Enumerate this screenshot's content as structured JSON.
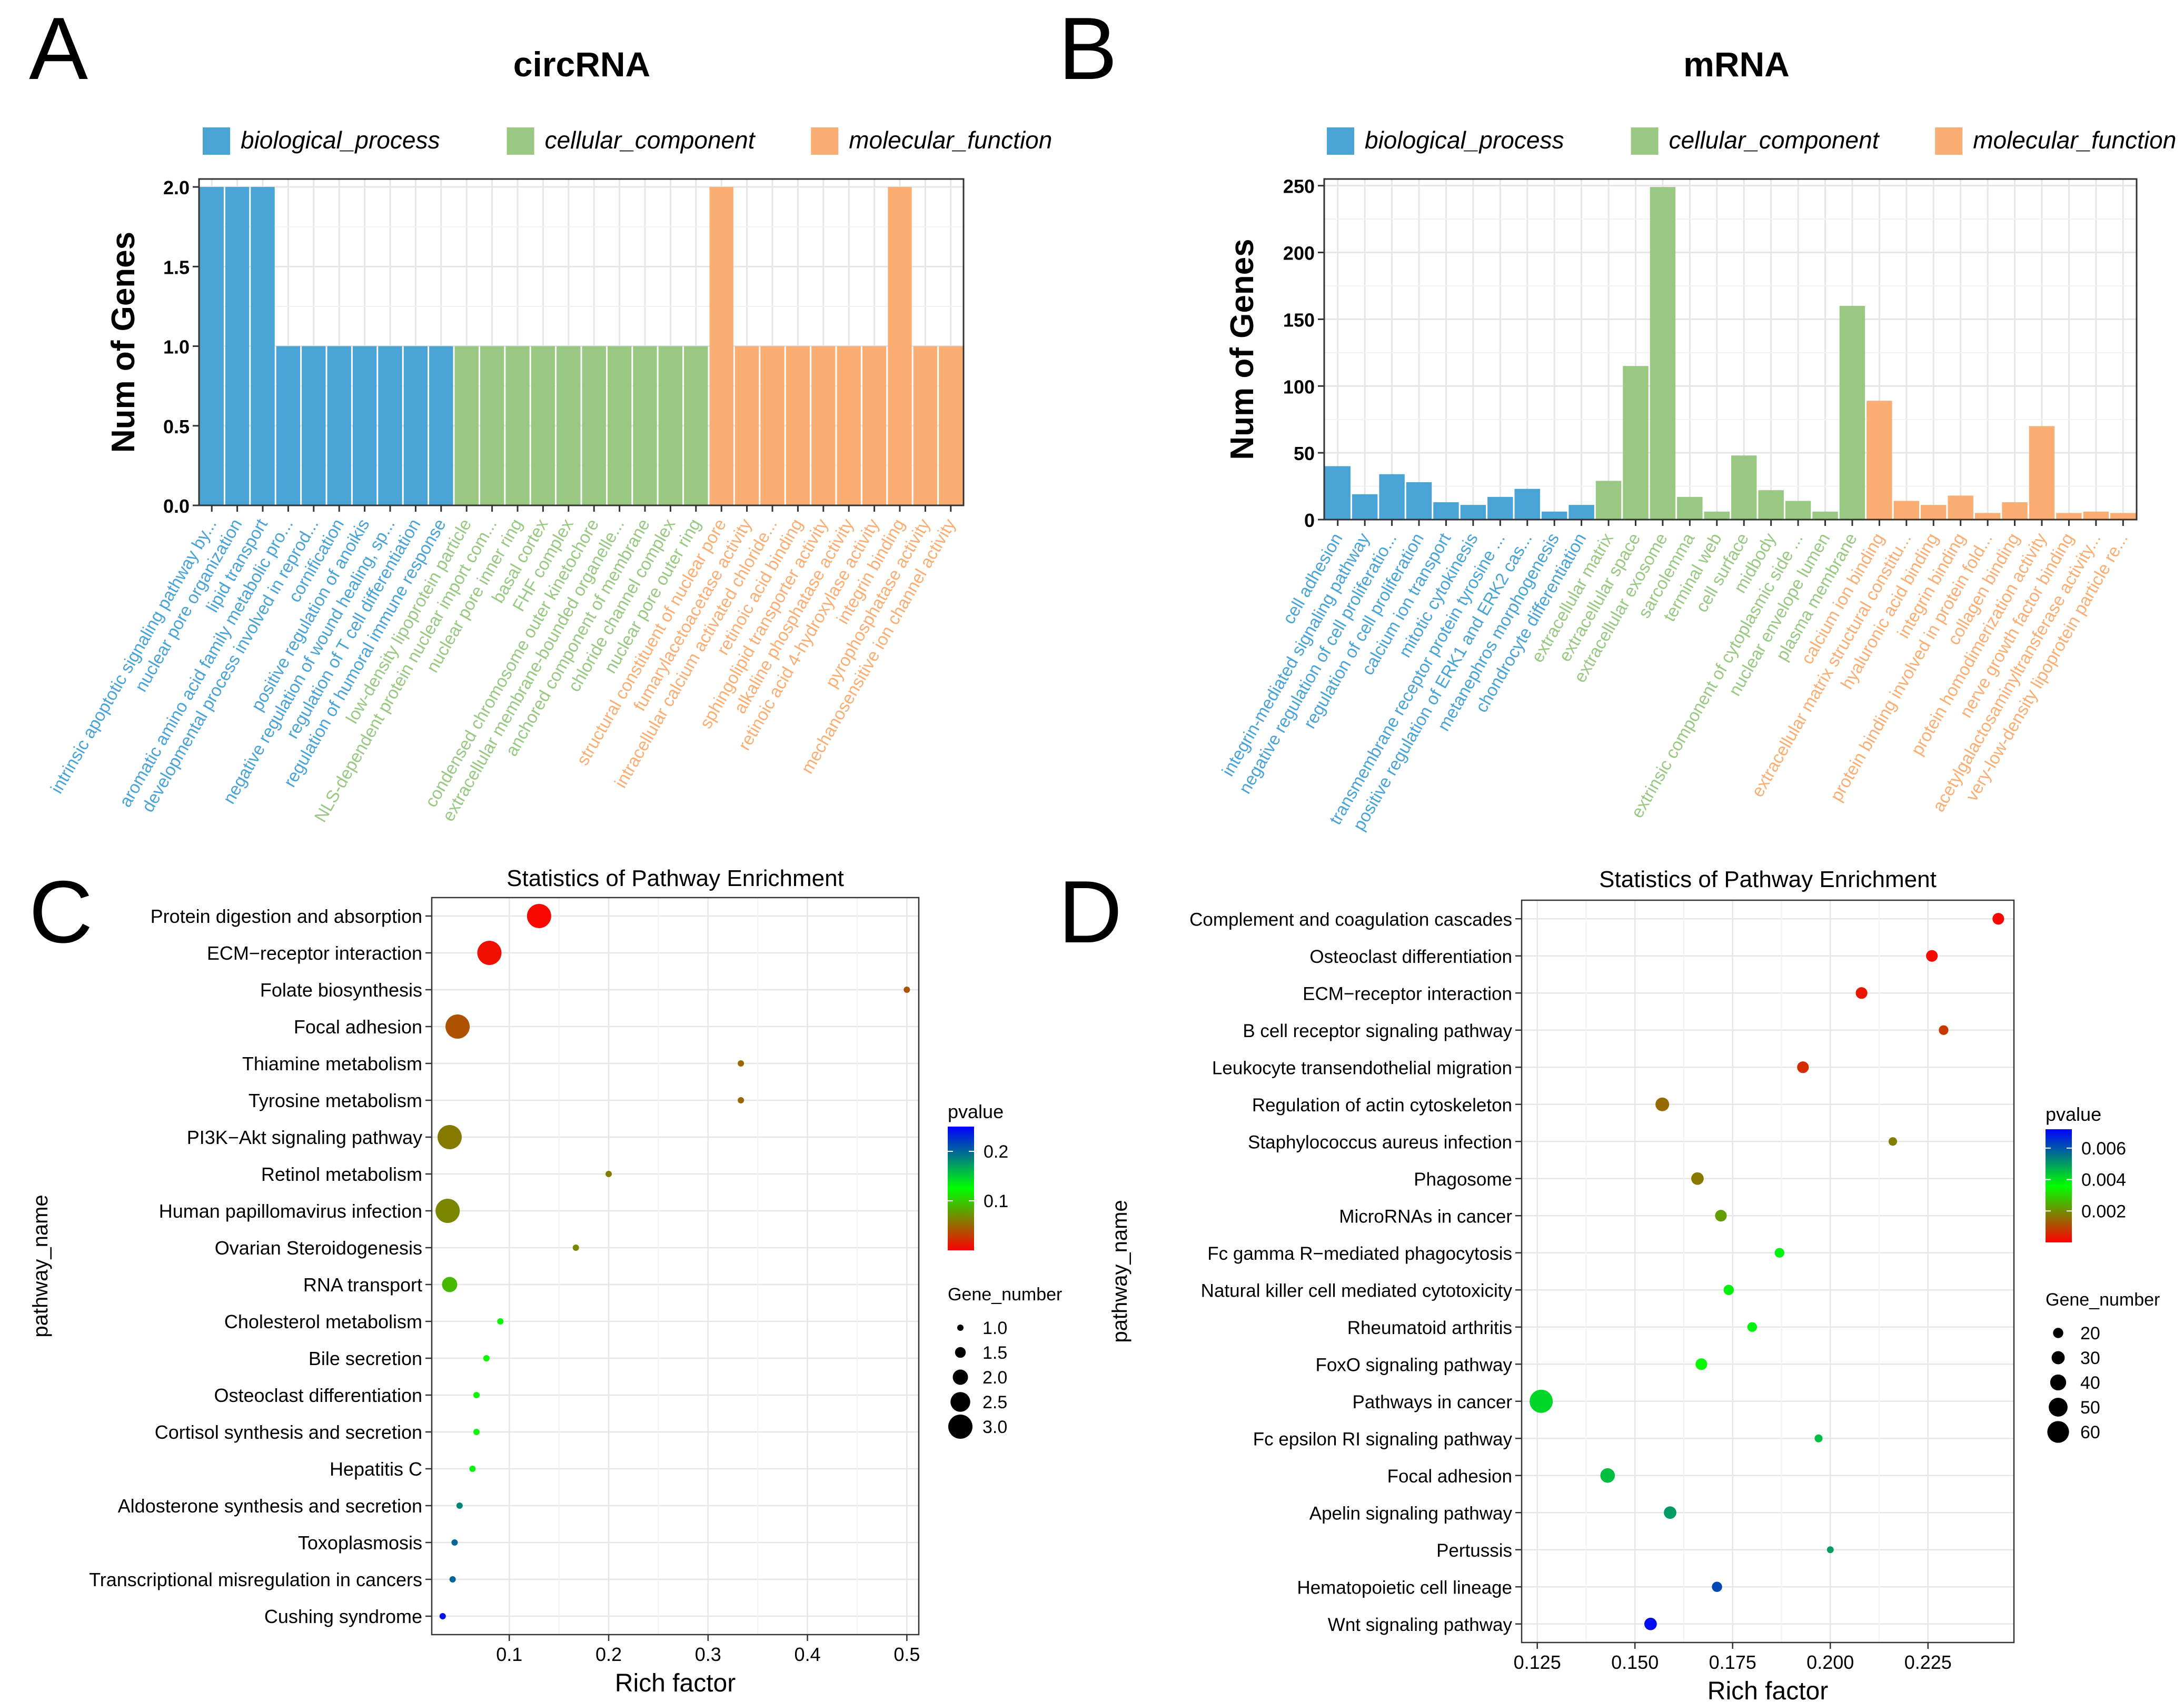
{
  "colors": {
    "biological_process": "#4aa3d5",
    "cellular_component": "#98c882",
    "molecular_function": "#fbae74",
    "pvalue_low": "#ff0000",
    "pvalue_mid": "#00ff00",
    "pvalue_high": "#0000ff",
    "grid_minor": "#f2f2f2",
    "grid_major": "#e6e6e6",
    "axis": "#333333",
    "text": "#000000"
  },
  "chart_data": [
    {
      "panel": "A",
      "type": "bar",
      "title": "circRNA",
      "ylabel": "Num of Genes",
      "xlabel": "",
      "ylim": [
        0,
        2.05
      ],
      "yticks": [
        "0.0",
        "0.5",
        "1.0",
        "1.5",
        "2.0"
      ],
      "grid": true,
      "legend_position": "top",
      "legend": [
        {
          "key": "biological_process",
          "label": "biological_process"
        },
        {
          "key": "cellular_component",
          "label": "cellular_component"
        },
        {
          "key": "molecular_function",
          "label": "molecular_function"
        }
      ],
      "categories": [
        "intrinsic apoptotic signaling pathway by...",
        "nuclear pore organization",
        "lipid transport",
        "aromatic amino acid family metabolic pro...",
        "developmental process involved in reprod...",
        "cornification",
        "positive regulation of anoikis",
        "negative regulation of wound healing, sp...",
        "regulation of T cell differentiation",
        "regulation of humoral immune response",
        "low-density lipoprotein particle",
        "NLS-dependent protein nuclear import com...",
        "nuclear pore inner ring",
        "basal cortex",
        "FHF complex",
        "condensed chromosome outer kinetochore",
        "extracellular membrane-bounded organelle...",
        "anchored component of membrane",
        "chloride channel complex",
        "nuclear pore outer ring",
        "structural constituent of nuclear pore",
        "fumarylacetoacetase activity",
        "intracellular calcium activated chloride...",
        "retinoic acid binding",
        "sphingolipid transporter activity",
        "alkaline phosphatase activity",
        "retinoic acid 4-hydroxylase activity",
        "integrin binding",
        "pyrophosphatase activity",
        "mechanosensitive ion channel activity"
      ],
      "values": [
        2,
        2,
        2,
        1,
        1,
        1,
        1,
        1,
        1,
        1,
        1,
        1,
        1,
        1,
        1,
        1,
        1,
        1,
        1,
        1,
        2,
        1,
        1,
        1,
        1,
        1,
        1,
        2,
        1,
        1
      ],
      "groups": [
        "biological_process",
        "biological_process",
        "biological_process",
        "biological_process",
        "biological_process",
        "biological_process",
        "biological_process",
        "biological_process",
        "biological_process",
        "biological_process",
        "cellular_component",
        "cellular_component",
        "cellular_component",
        "cellular_component",
        "cellular_component",
        "cellular_component",
        "cellular_component",
        "cellular_component",
        "cellular_component",
        "cellular_component",
        "molecular_function",
        "molecular_function",
        "molecular_function",
        "molecular_function",
        "molecular_function",
        "molecular_function",
        "molecular_function",
        "molecular_function",
        "molecular_function",
        "molecular_function"
      ]
    },
    {
      "panel": "B",
      "type": "bar",
      "title": "mRNA",
      "ylabel": "Num of Genes",
      "xlabel": "",
      "ylim": [
        0,
        255
      ],
      "yticks": [
        "0",
        "50",
        "100",
        "150",
        "200",
        "250"
      ],
      "grid": true,
      "legend_position": "top",
      "legend": [
        {
          "key": "biological_process",
          "label": "biological_process"
        },
        {
          "key": "cellular_component",
          "label": "cellular_component"
        },
        {
          "key": "molecular_function",
          "label": "molecular_function"
        }
      ],
      "categories": [
        "cell adhesion",
        "integrin-mediated signaling pathway",
        "negative regulation of cell proliferatio...",
        "regulation of cell proliferation",
        "calcium ion transport",
        "mitotic cytokinesis",
        "transmembrane receptor protein tyrosine ...",
        "positive regulation of ERK1 and ERK2 cas...",
        "metanephros morphogenesis",
        "chondrocyte differentiation",
        "extracellular matrix",
        "extracellular space",
        "extracellular exosome",
        "sarcolemma",
        "terminal web",
        "cell surface",
        "midbody",
        "extrinsic component of cytoplasmic side ...",
        "nuclear envelope lumen",
        "plasma membrane",
        "calcium ion binding",
        "extracellular matrix structural constitu...",
        "hyaluronic acid binding",
        "integrin binding",
        "protein binding involved in protein fold...",
        "collagen binding",
        "protein homodimerization activity",
        "nerve growth factor binding",
        "acetylgalactosaminyltransferase activity...",
        "very-low-density lipoprotein particle re..."
      ],
      "values": [
        40,
        19,
        34,
        28,
        13,
        11,
        17,
        23,
        6,
        11,
        29,
        115,
        249,
        17,
        6,
        48,
        22,
        14,
        6,
        160,
        89,
        14,
        11,
        18,
        5,
        13,
        70,
        5,
        6,
        5
      ],
      "groups": [
        "biological_process",
        "biological_process",
        "biological_process",
        "biological_process",
        "biological_process",
        "biological_process",
        "biological_process",
        "biological_process",
        "biological_process",
        "biological_process",
        "cellular_component",
        "cellular_component",
        "cellular_component",
        "cellular_component",
        "cellular_component",
        "cellular_component",
        "cellular_component",
        "cellular_component",
        "cellular_component",
        "cellular_component",
        "molecular_function",
        "molecular_function",
        "molecular_function",
        "molecular_function",
        "molecular_function",
        "molecular_function",
        "molecular_function",
        "molecular_function",
        "molecular_function",
        "molecular_function"
      ]
    },
    {
      "panel": "C",
      "type": "scatter",
      "title": "Statistics of Pathway Enrichment",
      "xlabel": "Rich factor",
      "ylabel": "pathway_name",
      "xlim": [
        0.022,
        0.512
      ],
      "xticks": [
        0.1,
        0.2,
        0.3,
        0.4,
        0.5
      ],
      "xtick_labels": [
        "0.1",
        "0.2",
        "0.3",
        "0.4",
        "0.5"
      ],
      "grid": true,
      "pvalue_range": [
        0,
        0.25
      ],
      "pvalue_ticks": [
        0.1,
        0.2
      ],
      "pvalue_tick_labels": [
        "0.1",
        "0.2"
      ],
      "size_range": [
        1,
        3
      ],
      "legend_position": "right",
      "color_legend_title": "pvalue",
      "size_legend_title": "Gene_number",
      "size_legend_values": [
        1.0,
        1.5,
        2.0,
        2.5,
        3.0
      ],
      "size_legend_labels": [
        "1.0",
        "1.5",
        "2.0",
        "2.5",
        "3.0"
      ],
      "pathways": [
        "Protein digestion and absorption",
        "ECM−receptor interaction",
        "Folate biosynthesis",
        "Focal adhesion",
        "Thiamine metabolism",
        "Tyrosine metabolism",
        "PI3K−Akt signaling pathway",
        "Retinol metabolism",
        "Human papillomavirus infection",
        "Ovarian Steroidogenesis",
        "RNA transport",
        "Cholesterol metabolism",
        "Bile secretion",
        "Osteoclast differentiation",
        "Cortisol synthesis and secretion",
        "Hepatitis C",
        "Aldosterone synthesis and secretion",
        "Toxoplasmosis",
        "Transcriptional misregulation in cancers",
        "Cushing syndrome"
      ],
      "rich_factor": [
        0.13,
        0.08,
        0.5,
        0.048,
        0.333,
        0.333,
        0.04,
        0.2,
        0.038,
        0.167,
        0.04,
        0.091,
        0.077,
        0.067,
        0.067,
        0.063,
        0.05,
        0.045,
        0.043,
        0.033
      ],
      "gene_number": [
        3,
        3,
        1,
        3,
        1,
        1,
        3,
        1,
        3,
        1,
        2,
        1,
        1,
        1,
        1,
        1,
        1,
        1,
        1,
        1
      ],
      "pvalue": [
        0.004,
        0.008,
        0.04,
        0.04,
        0.05,
        0.05,
        0.06,
        0.06,
        0.065,
        0.065,
        0.09,
        0.12,
        0.12,
        0.12,
        0.12,
        0.13,
        0.185,
        0.2,
        0.2,
        0.24
      ]
    },
    {
      "panel": "D",
      "type": "scatter",
      "title": "Statistics of Pathway Enrichment",
      "xlabel": "Rich factor",
      "ylabel": "pathway_name",
      "xlim": [
        0.121,
        0.247
      ],
      "xticks": [
        0.125,
        0.15,
        0.175,
        0.2,
        0.225
      ],
      "xtick_labels": [
        "0.125",
        "0.150",
        "0.175",
        "0.200",
        "0.225"
      ],
      "grid": true,
      "pvalue_range": [
        0,
        0.0072
      ],
      "pvalue_ticks": [
        0.002,
        0.004,
        0.006
      ],
      "pvalue_tick_labels": [
        "0.002",
        "0.004",
        "0.006"
      ],
      "size_range": [
        10,
        65
      ],
      "legend_position": "right",
      "color_legend_title": "pvalue",
      "size_legend_title": "Gene_number",
      "size_legend_values": [
        20,
        30,
        40,
        50,
        60
      ],
      "size_legend_labels": [
        "20",
        "30",
        "40",
        "50",
        "60"
      ],
      "pathways": [
        "Complement and coagulation cascades",
        "Osteoclast differentiation",
        "ECM−receptor interaction",
        "B cell receptor signaling pathway",
        "Leukocyte transendothelial migration",
        "Regulation of actin cytoskeleton",
        "Staphylococcus aureus infection",
        "Phagosome",
        "MicroRNAs in cancer",
        "Fc gamma R−mediated phagocytosis",
        "Natural killer cell mediated cytotoxicity",
        "Rheumatoid arthritis",
        "FoxO signaling pathway",
        "Pathways in cancer",
        "Fc epsilon RI signaling pathway",
        "Focal adhesion",
        "Apelin signaling pathway",
        "Pertussis",
        "Hematopoietic cell lineage",
        "Wnt signaling pathway"
      ],
      "rich_factor": [
        0.243,
        0.226,
        0.208,
        0.229,
        0.193,
        0.157,
        0.216,
        0.166,
        0.172,
        0.187,
        0.174,
        0.18,
        0.167,
        0.126,
        0.197,
        0.143,
        0.159,
        0.2,
        0.171,
        0.154
      ],
      "gene_number": [
        25,
        25,
        25,
        18,
        25,
        32,
        14,
        28,
        25,
        18,
        20,
        18,
        25,
        65,
        12,
        35,
        28,
        8,
        20,
        28
      ],
      "pvalue": [
        0.0001,
        0.0002,
        0.0003,
        0.0008,
        0.0006,
        0.0015,
        0.0018,
        0.0017,
        0.0022,
        0.0038,
        0.0038,
        0.0038,
        0.0035,
        0.0042,
        0.0045,
        0.0045,
        0.005,
        0.005,
        0.0062,
        0.007
      ]
    }
  ],
  "panel_labels": [
    "A",
    "B",
    "C",
    "D"
  ]
}
